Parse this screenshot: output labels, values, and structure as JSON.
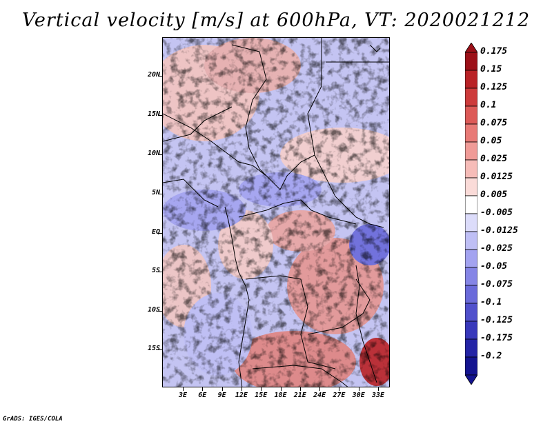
{
  "title": "Vertical velocity [m/s] at 600hPa, VT: 2020021212",
  "credit": "GrADS: IGES/COLA",
  "map": {
    "lat_labels": [
      "20N",
      "15N",
      "10N",
      "5N",
      "EQ",
      "5S",
      "10S",
      "15S"
    ],
    "lon_labels": [
      "3E",
      "6E",
      "9E",
      "12E",
      "15E",
      "18E",
      "21E",
      "24E",
      "27E",
      "30E",
      "33E"
    ]
  },
  "colorbar": {
    "labels": [
      "0.175",
      "0.15",
      "0.125",
      "0.1",
      "0.075",
      "0.05",
      "0.025",
      "0.0125",
      "0.005",
      "-0.005",
      "-0.0125",
      "-0.025",
      "-0.05",
      "-0.075",
      "-0.1",
      "-0.125",
      "-0.175",
      "-0.2"
    ],
    "colors": [
      "#9c1018",
      "#b92226",
      "#cd3b3b",
      "#dd5a57",
      "#e87a76",
      "#f09b97",
      "#f6bcb8",
      "#fadbd8",
      "#ffffff",
      "#dcdcfa",
      "#bfbff5",
      "#a3a3f0",
      "#8585e6",
      "#6a6ada",
      "#5050cc",
      "#3838bb",
      "#2424a6",
      "#141490"
    ]
  }
}
